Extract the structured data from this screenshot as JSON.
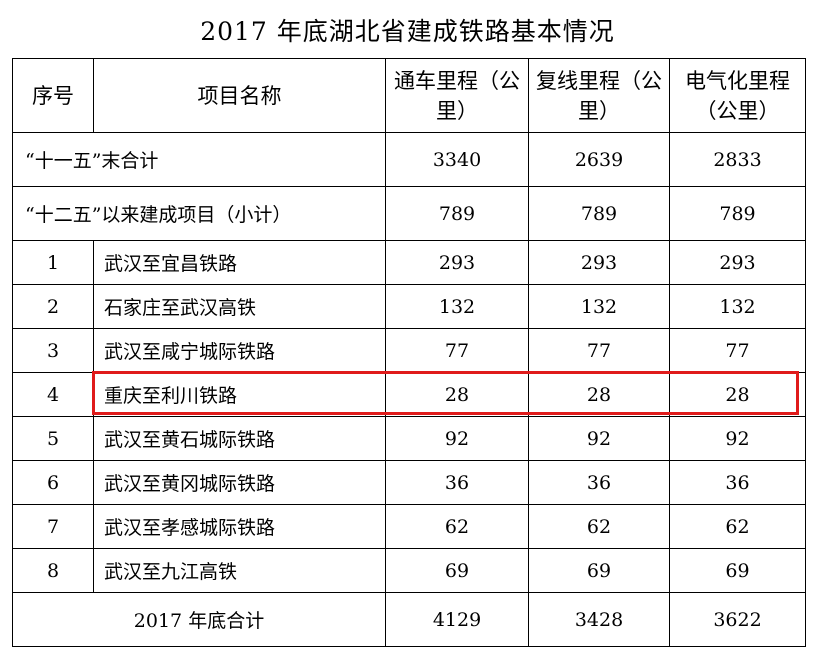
{
  "title": "2017 年底湖北省建成铁路基本情况",
  "header": {
    "seq": "序号",
    "name": "项目名称",
    "col1": "通车里程（公里）",
    "col2": "复线里程（公里）",
    "col3": "电气化里程（公里）"
  },
  "summary_top": [
    {
      "label": "“十一五”末合计",
      "v1": "3340",
      "v2": "2639",
      "v3": "2833"
    },
    {
      "label": "“十二五”以来建成项目（小计）",
      "v1": "789",
      "v2": "789",
      "v3": "789"
    }
  ],
  "rows": [
    {
      "seq": "1",
      "name": "武汉至宜昌铁路",
      "v1": "293",
      "v2": "293",
      "v3": "293"
    },
    {
      "seq": "2",
      "name": "石家庄至武汉高铁",
      "v1": "132",
      "v2": "132",
      "v3": "132"
    },
    {
      "seq": "3",
      "name": "武汉至咸宁城际铁路",
      "v1": "77",
      "v2": "77",
      "v3": "77"
    },
    {
      "seq": "4",
      "name": "重庆至利川铁路",
      "v1": "28",
      "v2": "28",
      "v3": "28"
    },
    {
      "seq": "5",
      "name": "武汉至黄石城际铁路",
      "v1": "92",
      "v2": "92",
      "v3": "92"
    },
    {
      "seq": "6",
      "name": "武汉至黄冈城际铁路",
      "v1": "36",
      "v2": "36",
      "v3": "36"
    },
    {
      "seq": "7",
      "name": "武汉至孝感城际铁路",
      "v1": "62",
      "v2": "62",
      "v3": "62"
    },
    {
      "seq": "8",
      "name": "武汉至九江高铁",
      "v1": "69",
      "v2": "69",
      "v3": "69"
    }
  ],
  "total": {
    "label": "2017 年底合计",
    "v1": "4129",
    "v2": "3428",
    "v3": "3622"
  },
  "highlight_color": "#e01b1b"
}
